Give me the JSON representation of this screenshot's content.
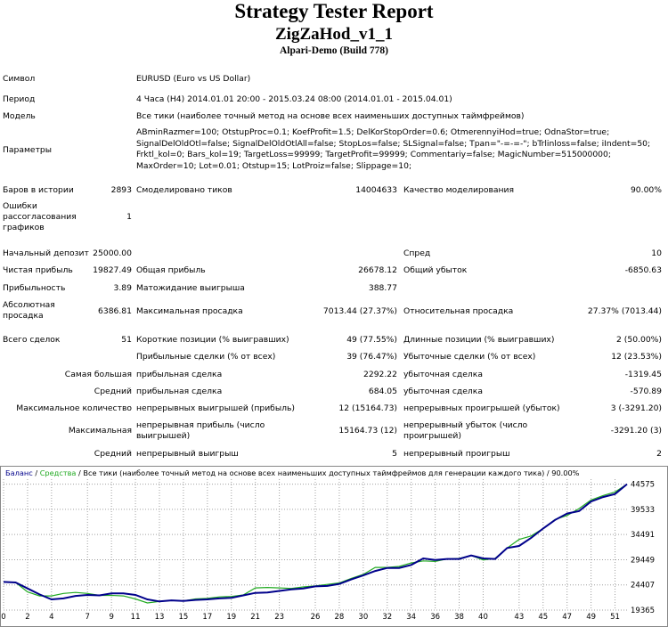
{
  "report": {
    "title": "Strategy Tester Report",
    "expert": "ZigZaHod_v1_1",
    "server": "Alpari-Demo (Build 778)"
  },
  "info": {
    "symbol_label": "Символ",
    "symbol_value": "EURUSD (Euro vs US Dollar)",
    "period_label": "Период",
    "period_value": "4 Часа (H4) 2014.01.01 20:00 - 2015.03.24 08:00 (2014.01.01 - 2015.04.01)",
    "model_label": "Модель",
    "model_value": "Все тики (наиболее точный метод на основе всех наименьших доступных таймфреймов)",
    "params_label": "Параметры",
    "params_value": "ABminRazmer=100; OtstupProc=0.1; KoefProfit=1.5; DelKorStopOrder=0.6; OtmerennyiHod=true; OdnaStor=true; SignalDelOldOtl=false; SignalDelOldOtlAll=false; StopLos=false; SLSignal=false; Tpan=\"-=-=-\"; bTrlinloss=false; iIndent=50; Frktl_kol=0; Bars_kol=19; TargetLoss=99999; TargetProfit=99999; Commentariy=false; MagicNumber=515000000; MaxOrder=10; Lot=0.01; Otstup=15; LotProiz=false; Slippage=10;"
  },
  "stats": {
    "bars_label": "Баров в истории",
    "bars_value": "2893",
    "ticks_label": "Смоделировано тиков",
    "ticks_value": "14004633",
    "quality_label": "Качество моделирования",
    "quality_value": "90.00%",
    "errors_label_1": "Ошибки",
    "errors_label_2": "рассогласования",
    "errors_label_3": "графиков",
    "errors_value": "1",
    "deposit_label": "Начальный депозит",
    "deposit_value": "25000.00",
    "spread_label": "Спред",
    "spread_value": "10",
    "net_label": "Чистая прибыль",
    "net_value": "19827.49",
    "gross_profit_label": "Общая прибыль",
    "gross_profit_value": "26678.12",
    "gross_loss_label": "Общий убыток",
    "gross_loss_value": "-6850.63",
    "pf_label": "Прибыльность",
    "pf_value": "3.89",
    "payoff_label": "Матожидание выигрыша",
    "payoff_value": "388.77",
    "abs_dd_label_1": "Абсолютная",
    "abs_dd_label_2": "просадка",
    "abs_dd_value": "6386.81",
    "max_dd_label": "Максимальная просадка",
    "max_dd_value": "7013.44 (27.37%)",
    "rel_dd_label": "Относительная просадка",
    "rel_dd_value": "27.37% (7013.44)",
    "trades_label": "Всего сделок",
    "trades_value": "51",
    "short_label": "Короткие позиции (% выигравших)",
    "short_value": "49 (77.55%)",
    "long_label": "Длинные позиции (% выигравших)",
    "long_value": "2 (50.00%)",
    "profit_trades_label": "Прибыльные сделки (% от всех)",
    "profit_trades_value": "39 (76.47%)",
    "loss_trades_label": "Убыточные сделки (% от всех)",
    "loss_trades_value": "12 (23.53%)",
    "largest_label": "Самая большая",
    "largest_profit_label": "прибыльная сделка",
    "largest_profit_value": "2292.22",
    "largest_loss_label": "убыточная сделка",
    "largest_loss_value": "-1319.45",
    "average_label": "Средний",
    "avg_profit_label": "прибыльная сделка",
    "avg_profit_value": "684.05",
    "avg_loss_label": "убыточная сделка",
    "avg_loss_value": "-570.89",
    "max_count_label": "Максимальное количество",
    "max_cons_wins_label": "непрерывных выигрышей (прибыль)",
    "max_cons_wins_value": "12 (15164.73)",
    "max_cons_losses_label": "непрерывных проигрышей (убыток)",
    "max_cons_losses_value": "3 (-3291.20)",
    "maximal_label": "Максимальная",
    "max_cons_profit_label_1": "непрерывная прибыль (число",
    "max_cons_profit_label_2": "выигрышей)",
    "max_cons_profit_value": "15164.73 (12)",
    "max_cons_loss_label_1": "непрерывный убыток (число",
    "max_cons_loss_label_2": "проигрышей)",
    "max_cons_loss_value": "-3291.20 (3)",
    "avg_cons_label": "Средний",
    "avg_cons_wins_label": "непрерывный выигрыш",
    "avg_cons_wins_value": "5",
    "avg_cons_losses_label": "непрерывный проигрыш",
    "avg_cons_losses_value": "2"
  },
  "chart_caption": {
    "balance": "Баланс",
    "sep1": " / ",
    "equity": "Средства",
    "rest": " / Все тики (наиболее точный метод на основе всех наименьших доступных таймфреймов для генерации каждого тика) / 90.00%"
  },
  "colors": {
    "balance": "#00008b",
    "equity": "#22aa22",
    "grid": "#a0a0a0"
  },
  "chart_data": {
    "type": "line",
    "xlabel": "",
    "ylabel": "",
    "xlim": [
      0,
      52
    ],
    "ylim": [
      19365,
      45575
    ],
    "x_ticks": [
      0,
      2,
      4,
      7,
      9,
      11,
      13,
      15,
      17,
      19,
      21,
      23,
      26,
      28,
      30,
      32,
      34,
      36,
      38,
      40,
      43,
      45,
      47,
      49,
      51
    ],
    "y_ticks": [
      44575,
      39533,
      34491,
      29449,
      24407,
      19365
    ],
    "grid": true,
    "series": [
      {
        "name": "Баланс",
        "x": [
          0,
          1,
          2,
          3,
          4,
          5,
          6,
          7,
          8,
          9,
          10,
          11,
          12,
          13,
          14,
          15,
          16,
          17,
          18,
          19,
          20,
          21,
          22,
          23,
          24,
          25,
          26,
          27,
          28,
          29,
          30,
          31,
          32,
          33,
          34,
          35,
          36,
          37,
          38,
          39,
          40,
          41,
          42,
          43,
          44,
          45,
          46,
          47,
          48,
          49,
          50,
          51,
          52
        ],
        "y": [
          25000,
          24900,
          23700,
          22500,
          21500,
          21700,
          22200,
          22400,
          22300,
          22700,
          22700,
          22400,
          21500,
          21100,
          21300,
          21200,
          21400,
          21500,
          21700,
          21800,
          22300,
          22800,
          22900,
          23200,
          23500,
          23700,
          24100,
          24200,
          24600,
          25500,
          26300,
          27200,
          27800,
          27800,
          28400,
          29700,
          29400,
          29600,
          29600,
          30300,
          29700,
          29600,
          31800,
          32200,
          33800,
          35700,
          37400,
          38700,
          39200,
          41100,
          42000,
          42600,
          44575
        ]
      },
      {
        "name": "Средства",
        "x": [
          0,
          1,
          2,
          3,
          4,
          5,
          6,
          7,
          8,
          9,
          10,
          11,
          12,
          13,
          14,
          15,
          16,
          17,
          18,
          19,
          20,
          21,
          22,
          23,
          24,
          25,
          26,
          27,
          28,
          29,
          30,
          31,
          32,
          33,
          34,
          35,
          36,
          37,
          38,
          39,
          40,
          41,
          42,
          43,
          44,
          45,
          46,
          47,
          48,
          49,
          50,
          51,
          52
        ],
        "y": [
          25000,
          24900,
          23000,
          22200,
          22200,
          22700,
          22900,
          22700,
          22300,
          22300,
          22200,
          21600,
          20800,
          21100,
          21300,
          21200,
          21600,
          21700,
          22000,
          22100,
          22400,
          23800,
          23900,
          23800,
          23700,
          24000,
          24200,
          24500,
          24800,
          25700,
          26500,
          27900,
          27900,
          28100,
          28800,
          29200,
          29100,
          29600,
          29700,
          30300,
          29400,
          29700,
          31800,
          33500,
          34200,
          35700,
          37500,
          38300,
          39700,
          41400,
          42300,
          43000,
          44575
        ]
      }
    ]
  }
}
